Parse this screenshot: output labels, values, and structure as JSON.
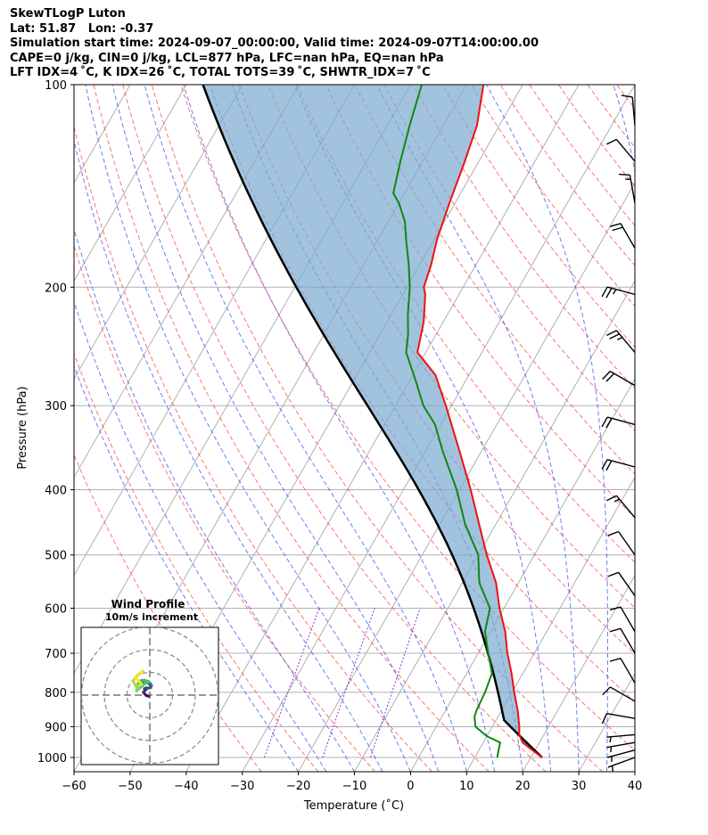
{
  "header": {
    "line1": "SkewTLogP Luton",
    "line2": "Lat: 51.87   Lon: -0.37",
    "line3": "Simulation start time: 2024-09-07_00:00:00, Valid time: 2024-09-07T14:00:00.00",
    "line4": "CAPE=0 j/kg, CIN=0 j/kg, LCL=877 hPa, LFC=nan hPa, EQ=nan hPa",
    "line5": "LFT IDX=4 ˚C, K IDX=26 ˚C, TOTAL TOTS=39 ˚C, SHWTR_IDX=7 ˚C"
  },
  "colors": {
    "temperature": "#ee1111",
    "dewpoint": "#118811",
    "parcel": "#000000",
    "cape_fill": "#7aaad0",
    "dry_adiabat": "#ff4444",
    "moist_adiabat": "#3344ee",
    "mixing_ratio": "#8833cc",
    "isotherm": "#999999"
  },
  "chart_data": {
    "type": "skewt",
    "xlabel": "Temperature (˚C)",
    "ylabel": "Pressure (hPa)",
    "xlim": [
      -60,
      40
    ],
    "ylim": [
      1050,
      100
    ],
    "y_scale": "log",
    "x_ticks": [
      -60,
      -50,
      -40,
      -30,
      -20,
      -10,
      0,
      10,
      20,
      30,
      40
    ],
    "y_ticks": [
      100,
      200,
      300,
      400,
      500,
      600,
      700,
      800,
      900,
      1000
    ],
    "grid": true,
    "temperature": [
      {
        "p": 1000,
        "t": 22.0
      },
      {
        "p": 975,
        "t": 19.5
      },
      {
        "p": 950,
        "t": 17.0
      },
      {
        "p": 925,
        "t": 15.6
      },
      {
        "p": 900,
        "t": 14.8
      },
      {
        "p": 850,
        "t": 12.8
      },
      {
        "p": 800,
        "t": 10.4
      },
      {
        "p": 750,
        "t": 8.0
      },
      {
        "p": 700,
        "t": 5.2
      },
      {
        "p": 650,
        "t": 2.6
      },
      {
        "p": 600,
        "t": -0.8
      },
      {
        "p": 550,
        "t": -4.0
      },
      {
        "p": 500,
        "t": -8.5
      },
      {
        "p": 450,
        "t": -13.0
      },
      {
        "p": 400,
        "t": -18.0
      },
      {
        "p": 350,
        "t": -24.0
      },
      {
        "p": 300,
        "t": -31.0
      },
      {
        "p": 270,
        "t": -36.0
      },
      {
        "p": 250,
        "t": -41.5
      },
      {
        "p": 225,
        "t": -43.5
      },
      {
        "p": 205,
        "t": -46.0
      },
      {
        "p": 200,
        "t": -47.0
      },
      {
        "p": 185,
        "t": -48.0
      },
      {
        "p": 170,
        "t": -49.5
      },
      {
        "p": 150,
        "t": -51.0
      },
      {
        "p": 130,
        "t": -52.5
      },
      {
        "p": 115,
        "t": -54.0
      },
      {
        "p": 100,
        "t": -57.0
      }
    ],
    "dewpoint": [
      {
        "p": 1000,
        "t": 14.0
      },
      {
        "p": 950,
        "t": 13.0
      },
      {
        "p": 930,
        "t": 10.0
      },
      {
        "p": 900,
        "t": 7.0
      },
      {
        "p": 870,
        "t": 5.8
      },
      {
        "p": 850,
        "t": 5.5
      },
      {
        "p": 800,
        "t": 5.2
      },
      {
        "p": 750,
        "t": 4.5
      },
      {
        "p": 700,
        "t": 1.8
      },
      {
        "p": 650,
        "t": -1.0
      },
      {
        "p": 600,
        "t": -2.5
      },
      {
        "p": 550,
        "t": -7.0
      },
      {
        "p": 500,
        "t": -10.0
      },
      {
        "p": 450,
        "t": -15.5
      },
      {
        "p": 400,
        "t": -20.5
      },
      {
        "p": 350,
        "t": -27.0
      },
      {
        "p": 320,
        "t": -31.0
      },
      {
        "p": 300,
        "t": -35.0
      },
      {
        "p": 275,
        "t": -39.0
      },
      {
        "p": 250,
        "t": -43.5
      },
      {
        "p": 235,
        "t": -45.0
      },
      {
        "p": 220,
        "t": -47.0
      },
      {
        "p": 200,
        "t": -49.5
      },
      {
        "p": 185,
        "t": -52.0
      },
      {
        "p": 170,
        "t": -55.0
      },
      {
        "p": 160,
        "t": -57.0
      },
      {
        "p": 150,
        "t": -60.0
      },
      {
        "p": 145,
        "t": -62.0
      },
      {
        "p": 130,
        "t": -64.0
      },
      {
        "p": 115,
        "t": -66.0
      },
      {
        "p": 100,
        "t": -68.0
      }
    ],
    "parcel_surface": {
      "p": 1000,
      "t": 22.0
    },
    "parcel_lcl_pressure": 877,
    "parcel_lcl_temperature": 16.5,
    "parcel_top_pressure": 100,
    "wind_barbs": [
      {
        "p": 1000,
        "speed": 5,
        "dir": 250
      },
      {
        "p": 975,
        "speed": 5,
        "dir": 255
      },
      {
        "p": 950,
        "speed": 5,
        "dir": 260
      },
      {
        "p": 925,
        "speed": 5,
        "dir": 265
      },
      {
        "p": 875,
        "speed": 10,
        "dir": 280
      },
      {
        "p": 825,
        "speed": 10,
        "dir": 300
      },
      {
        "p": 775,
        "speed": 10,
        "dir": 330
      },
      {
        "p": 700,
        "speed": 10,
        "dir": 330
      },
      {
        "p": 650,
        "speed": 10,
        "dir": 330
      },
      {
        "p": 575,
        "speed": 10,
        "dir": 325
      },
      {
        "p": 500,
        "speed": 10,
        "dir": 325
      },
      {
        "p": 440,
        "speed": 15,
        "dir": 320
      },
      {
        "p": 370,
        "speed": 20,
        "dir": 285
      },
      {
        "p": 320,
        "speed": 20,
        "dir": 285
      },
      {
        "p": 280,
        "speed": 20,
        "dir": 300
      },
      {
        "p": 250,
        "speed": 25,
        "dir": 320
      },
      {
        "p": 205,
        "speed": 25,
        "dir": 285
      },
      {
        "p": 175,
        "speed": 20,
        "dir": 330
      },
      {
        "p": 150,
        "speed": 15,
        "dir": 350
      },
      {
        "p": 130,
        "speed": 10,
        "dir": 320
      },
      {
        "p": 115,
        "speed": 10,
        "dir": 355
      }
    ],
    "hodograph": {
      "title": "Wind Profile",
      "subtitle": "10m/s increment",
      "rings": [
        10,
        20,
        30
      ],
      "u": [
        -0.5,
        -1.5,
        -2.2,
        -2.8,
        -2.2,
        -1.6,
        -2.4,
        -1.6,
        -0.5,
        0.5,
        0.3,
        0.2,
        0.8,
        -0.8,
        -2.0,
        -3.0,
        -3.6,
        -4.2,
        -5.2,
        -4.4,
        -3.8,
        -2.4,
        -0.3,
        -1.8,
        -4.8,
        -5.8,
        -5.4,
        -5.6,
        -7.4,
        -5.2,
        -3.0,
        -6.4,
        -3.6
      ],
      "v": [
        -0.5,
        -0.2,
        0.5,
        1.2,
        2.0,
        2.4,
        2.8,
        3.2,
        3.1,
        3.3,
        4.0,
        5.0,
        4.2,
        5.2,
        5.6,
        5.3,
        4.8,
        5.2,
        5.0,
        5.6,
        6.4,
        6.6,
        5.9,
        5.3,
        2.8,
        1.8,
        4.6,
        3.1,
        6.2,
        9.0,
        10.6,
        7.8,
        4.8
      ]
    }
  }
}
